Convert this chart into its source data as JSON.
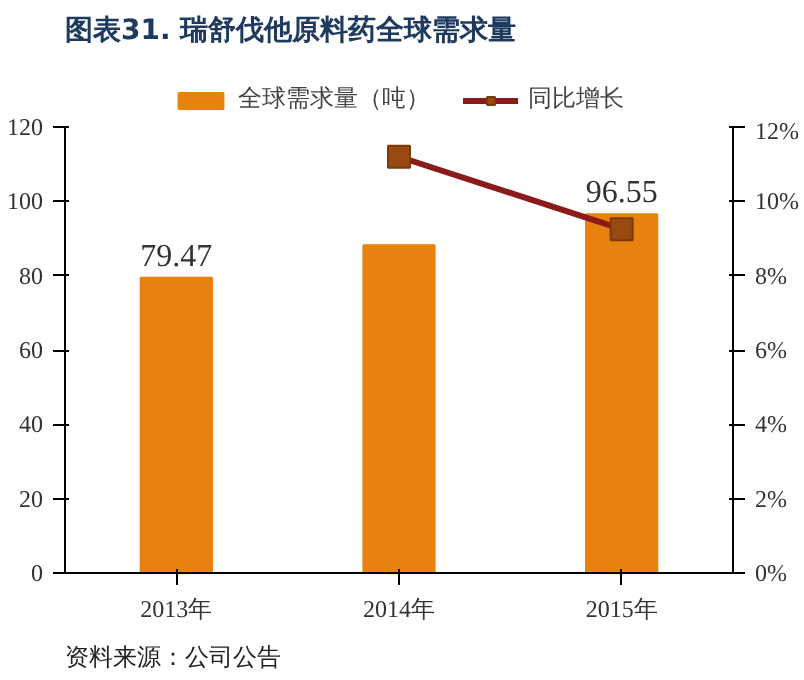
{
  "chart_data": {
    "type": "bar",
    "title": "图表31.  瑞舒伐他原料药全球需求量",
    "categories": [
      "2013年",
      "2014年",
      "2015年"
    ],
    "series": [
      {
        "name": "全球需求量（吨）",
        "color": "#e8820e",
        "values": [
          79.47,
          88.2,
          96.55
        ],
        "value_labels": [
          "79.47",
          null,
          "96.55"
        ]
      },
      {
        "name": "同比增长",
        "type": "line",
        "axis": "y2",
        "color": "#8b1a1a",
        "marker": "square",
        "values": [
          null,
          11.2,
          9.25
        ]
      }
    ],
    "ylim": [
      0,
      120
    ],
    "yticks": [
      0,
      20,
      40,
      60,
      80,
      100,
      120
    ],
    "y2lim": [
      0,
      12
    ],
    "y2ticks": [
      {
        "value": 0,
        "label": "0%"
      },
      {
        "value": 2,
        "label": "2%"
      },
      {
        "value": 4,
        "label": "4%"
      },
      {
        "value": 6,
        "label": "6%"
      },
      {
        "value": 8,
        "label": "8%"
      },
      {
        "value": 10,
        "label": "10%"
      },
      {
        "value": 12,
        "label": "12%"
      }
    ],
    "grid": false,
    "legend": "top",
    "annotations": [
      "资料来源：公司公告"
    ]
  }
}
